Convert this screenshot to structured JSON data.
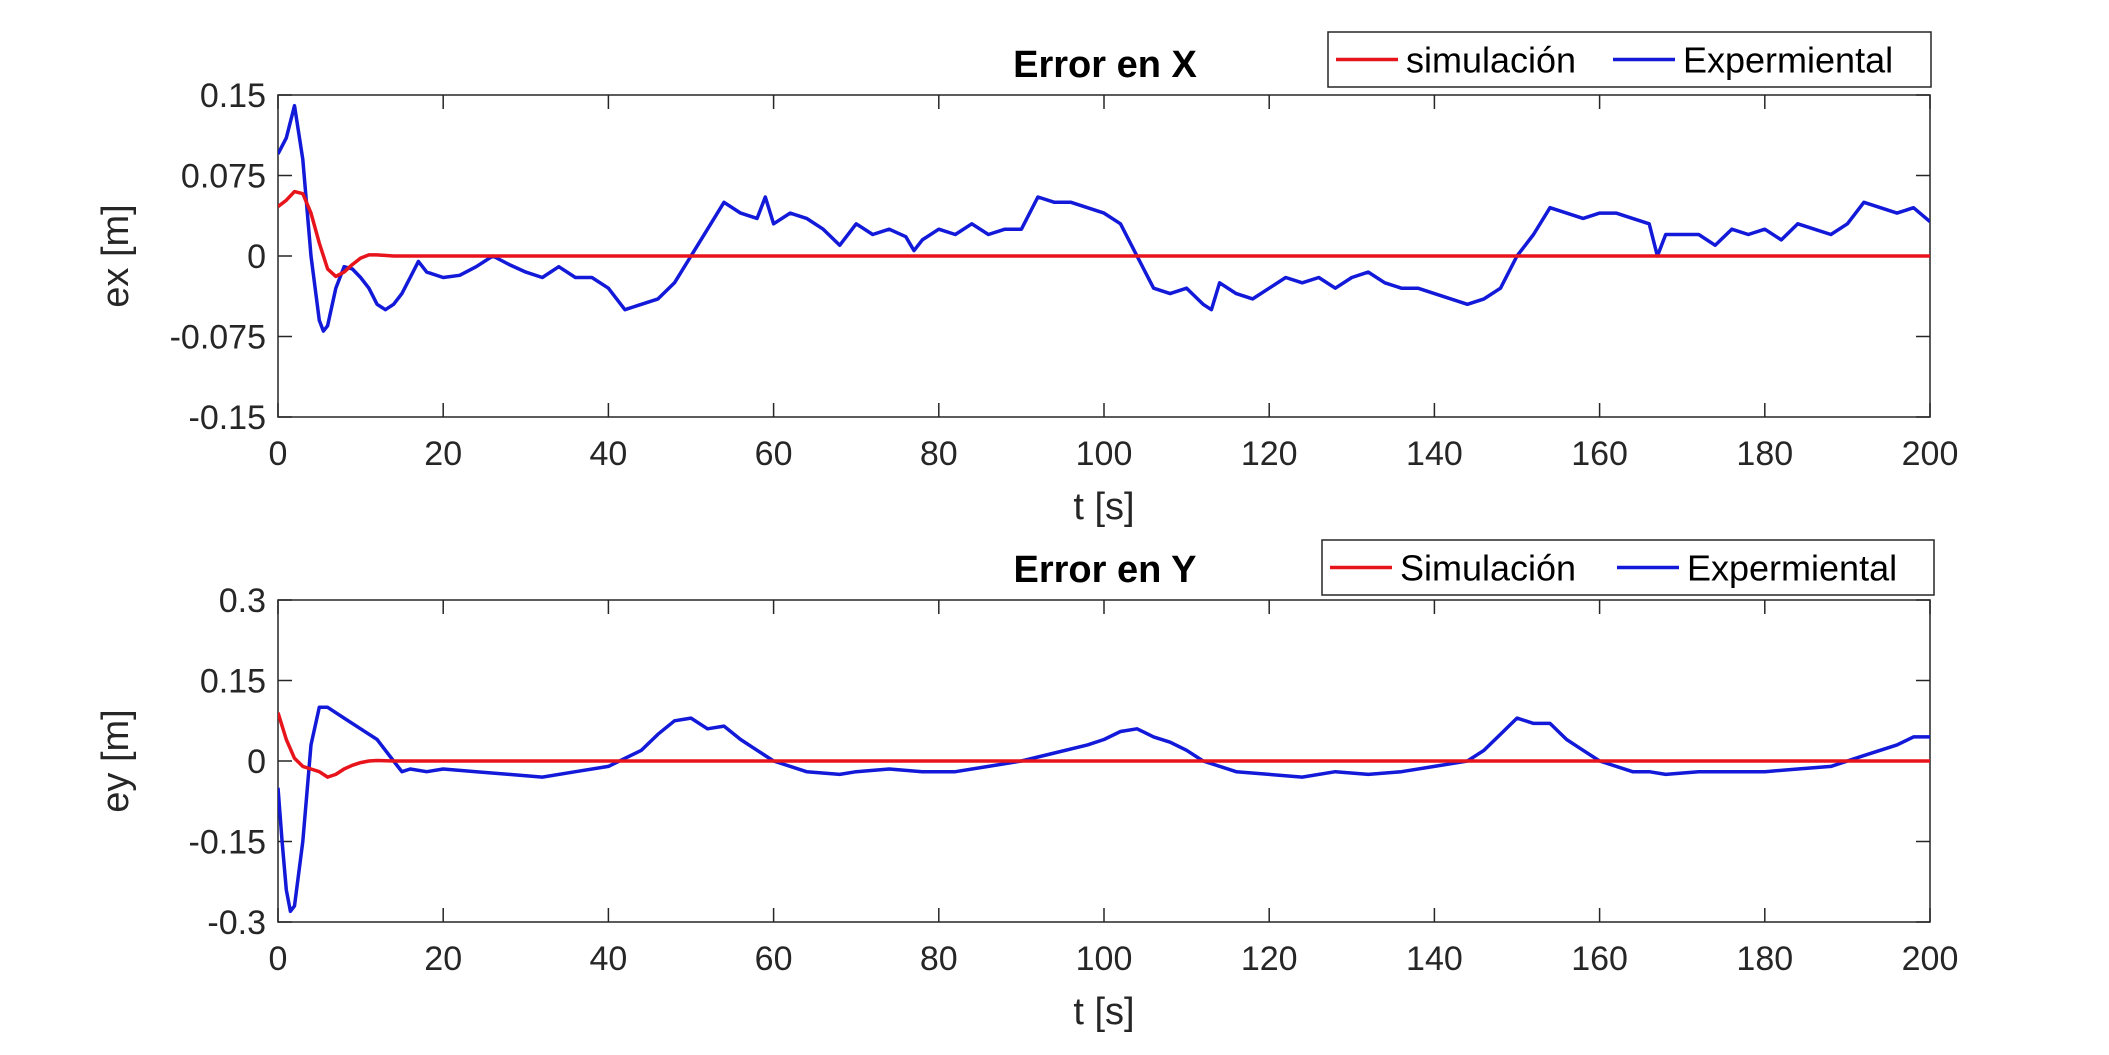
{
  "chart_data": [
    {
      "type": "line",
      "title": "Error en X",
      "xlabel": "t [s]",
      "ylabel": "ex [m]",
      "xlim": [
        0,
        200
      ],
      "ylim": [
        -0.15,
        0.15
      ],
      "xticks": [
        0,
        20,
        40,
        60,
        80,
        100,
        120,
        140,
        160,
        180,
        200
      ],
      "yticks": [
        -0.15,
        -0.075,
        0,
        0.075,
        0.15
      ],
      "ytick_labels": [
        "-0.15",
        "-0.075",
        "0",
        "0.075",
        "0.15"
      ],
      "grid": false,
      "legend_position": "top-right, outside above plot",
      "series": [
        {
          "name": "simulación",
          "color": "#e8141c",
          "x": [
            0,
            1,
            2,
            3,
            4,
            5,
            6,
            7,
            8,
            9,
            10,
            11,
            12,
            14,
            200
          ],
          "y": [
            0.046,
            0.052,
            0.06,
            0.058,
            0.04,
            0.012,
            -0.012,
            -0.019,
            -0.015,
            -0.008,
            -0.002,
            0.001,
            0.001,
            0.0,
            0.0
          ]
        },
        {
          "name": "Expermiental",
          "color": "#1219d8",
          "x": [
            0,
            1,
            2,
            3,
            4,
            5,
            5.5,
            6,
            7,
            8,
            9,
            10,
            11,
            12,
            13,
            14,
            15,
            16,
            17,
            18,
            20,
            22,
            24,
            26,
            28,
            30,
            32,
            34,
            36,
            38,
            40,
            42,
            44,
            46,
            48,
            50,
            52,
            54,
            56,
            58,
            59,
            60,
            62,
            64,
            66,
            68,
            70,
            72,
            74,
            76,
            77,
            78,
            80,
            82,
            84,
            86,
            88,
            90,
            92,
            94,
            96,
            98,
            100,
            102,
            104,
            106,
            108,
            110,
            112,
            113,
            114,
            116,
            118,
            120,
            122,
            124,
            126,
            128,
            130,
            132,
            134,
            136,
            138,
            140,
            142,
            144,
            146,
            148,
            150,
            152,
            154,
            156,
            158,
            160,
            162,
            164,
            166,
            167,
            168,
            170,
            172,
            174,
            176,
            178,
            180,
            182,
            184,
            186,
            188,
            190,
            192,
            194,
            196,
            198,
            200
          ],
          "y": [
            0.095,
            0.11,
            0.14,
            0.09,
            0.0,
            -0.06,
            -0.07,
            -0.065,
            -0.03,
            -0.01,
            -0.012,
            -0.02,
            -0.03,
            -0.045,
            -0.05,
            -0.045,
            -0.035,
            -0.02,
            -0.005,
            -0.015,
            -0.02,
            -0.018,
            -0.01,
            0.0,
            -0.008,
            -0.015,
            -0.02,
            -0.01,
            -0.02,
            -0.02,
            -0.03,
            -0.05,
            -0.045,
            -0.04,
            -0.025,
            0.0,
            0.025,
            0.05,
            0.04,
            0.035,
            0.055,
            0.03,
            0.04,
            0.035,
            0.025,
            0.01,
            0.03,
            0.02,
            0.025,
            0.018,
            0.005,
            0.015,
            0.025,
            0.02,
            0.03,
            0.02,
            0.025,
            0.025,
            0.055,
            0.05,
            0.05,
            0.045,
            0.04,
            0.03,
            0.0,
            -0.03,
            -0.035,
            -0.03,
            -0.045,
            -0.05,
            -0.025,
            -0.035,
            -0.04,
            -0.03,
            -0.02,
            -0.025,
            -0.02,
            -0.03,
            -0.02,
            -0.015,
            -0.025,
            -0.03,
            -0.03,
            -0.035,
            -0.04,
            -0.045,
            -0.04,
            -0.03,
            0.0,
            0.02,
            0.045,
            0.04,
            0.035,
            0.04,
            0.04,
            0.035,
            0.03,
            0.0,
            0.02,
            0.02,
            0.02,
            0.01,
            0.025,
            0.02,
            0.025,
            0.015,
            0.03,
            0.025,
            0.02,
            0.03,
            0.05,
            0.045,
            0.04,
            0.045,
            0.032
          ]
        }
      ]
    },
    {
      "type": "line",
      "title": "Error en Y",
      "xlabel": "t [s]",
      "ylabel": "ey [m]",
      "xlim": [
        0,
        200
      ],
      "ylim": [
        -0.3,
        0.3
      ],
      "xticks": [
        0,
        20,
        40,
        60,
        80,
        100,
        120,
        140,
        160,
        180,
        200
      ],
      "yticks": [
        -0.3,
        -0.15,
        0,
        0.15,
        0.3
      ],
      "ytick_labels": [
        "-0.3",
        "-0.15",
        "0",
        "0.15",
        "0.3"
      ],
      "grid": false,
      "legend_position": "top-right, outside above plot",
      "series": [
        {
          "name": "Simulación",
          "color": "#e8141c",
          "x": [
            0,
            1,
            2,
            3,
            4,
            5,
            6,
            7,
            8,
            9,
            10,
            11,
            12,
            14,
            200
          ],
          "y": [
            0.09,
            0.04,
            0.005,
            -0.01,
            -0.015,
            -0.02,
            -0.03,
            -0.025,
            -0.015,
            -0.008,
            -0.003,
            0.0,
            0.001,
            0.0,
            0.0
          ]
        },
        {
          "name": "Expermiental",
          "color": "#1219d8",
          "x": [
            0,
            0.5,
            1,
            1.5,
            2,
            3,
            4,
            5,
            6,
            7,
            8,
            10,
            12,
            14,
            15,
            16,
            18,
            20,
            24,
            28,
            32,
            36,
            40,
            44,
            46,
            48,
            50,
            52,
            54,
            56,
            58,
            60,
            64,
            68,
            70,
            74,
            78,
            82,
            86,
            90,
            94,
            98,
            100,
            102,
            104,
            106,
            108,
            110,
            112,
            116,
            120,
            124,
            128,
            132,
            136,
            140,
            144,
            146,
            148,
            150,
            152,
            154,
            156,
            158,
            160,
            164,
            166,
            168,
            172,
            176,
            180,
            184,
            188,
            192,
            196,
            198,
            200
          ],
          "y": [
            -0.05,
            -0.15,
            -0.24,
            -0.28,
            -0.27,
            -0.15,
            0.03,
            0.1,
            0.1,
            0.09,
            0.08,
            0.06,
            0.04,
            0.0,
            -0.02,
            -0.015,
            -0.02,
            -0.015,
            -0.02,
            -0.025,
            -0.03,
            -0.02,
            -0.01,
            0.02,
            0.05,
            0.075,
            0.08,
            0.06,
            0.065,
            0.04,
            0.02,
            0.0,
            -0.02,
            -0.025,
            -0.02,
            -0.015,
            -0.02,
            -0.02,
            -0.01,
            0.0,
            0.015,
            0.03,
            0.04,
            0.055,
            0.06,
            0.045,
            0.035,
            0.02,
            0.0,
            -0.02,
            -0.025,
            -0.03,
            -0.02,
            -0.025,
            -0.02,
            -0.01,
            0.0,
            0.02,
            0.05,
            0.08,
            0.07,
            0.07,
            0.04,
            0.02,
            0.0,
            -0.02,
            -0.02,
            -0.025,
            -0.02,
            -0.02,
            -0.02,
            -0.015,
            -0.01,
            0.01,
            0.03,
            0.045,
            0.045
          ]
        }
      ]
    }
  ]
}
